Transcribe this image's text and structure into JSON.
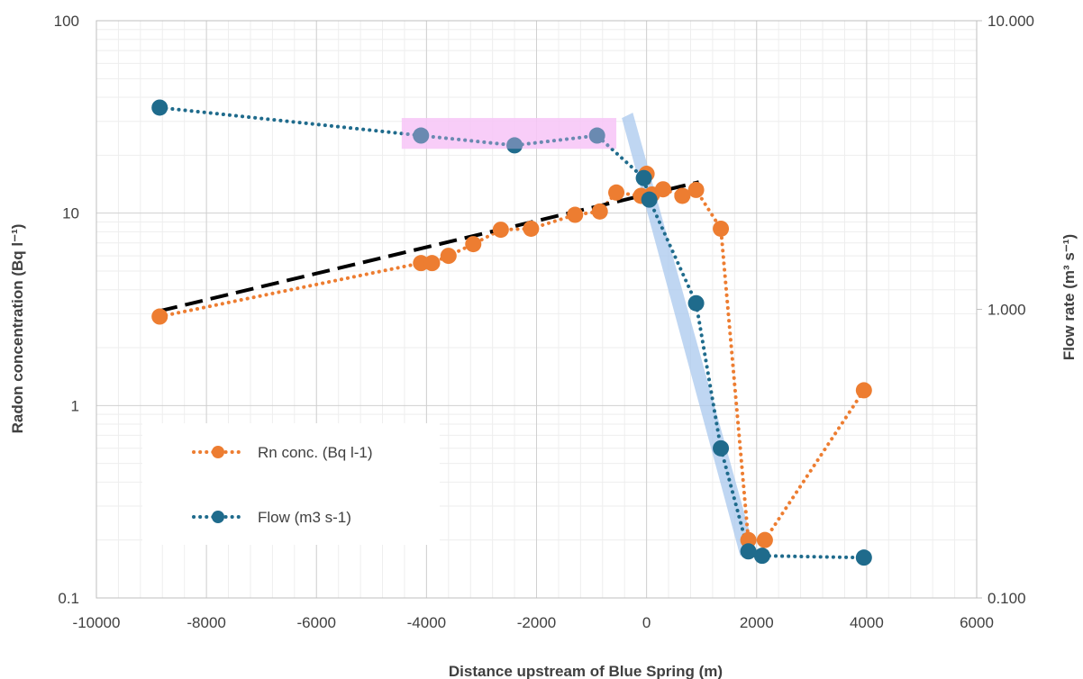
{
  "chart_data": {
    "type": "scatter",
    "title": "",
    "xlabel": "Distance upstream of Blue Spring (m)",
    "ylabel_left": "Radon concentration (Bq l⁻¹)",
    "ylabel_right": "Flow rate (m³ s⁻¹)",
    "x_range": [
      -10000,
      6000
    ],
    "x_ticks": [
      -10000,
      -8000,
      -6000,
      -4000,
      -2000,
      0,
      2000,
      4000,
      6000
    ],
    "x_tick_labels": [
      "-10000",
      "-8000",
      "-6000",
      "-4000",
      "-2000",
      "0",
      "2000",
      "4000",
      "6000"
    ],
    "y_left": {
      "scale": "log",
      "range": [
        0.1,
        100
      ],
      "ticks": [
        0.1,
        1,
        10,
        100
      ],
      "tick_labels": [
        "0.1",
        "1",
        "10",
        "100"
      ]
    },
    "y_right": {
      "scale": "log",
      "range": [
        0.1,
        10
      ],
      "ticks": [
        0.1,
        1,
        10
      ],
      "tick_labels": [
        "0.100",
        "1.000",
        "10.000"
      ]
    },
    "grid": true,
    "legend_position": "bottom-left",
    "colors": {
      "rn": "#ED7D31",
      "flow": "#1F6B8C",
      "trend": "#000000",
      "pink_band": "#F7C6F7",
      "blue_band": "#A9C8EE"
    },
    "series": [
      {
        "name": "Rn conc. (Bq l-1)",
        "axis": "left",
        "style": "dotted-marker",
        "color": "#ED7D31",
        "points": [
          [
            -8850,
            2.9
          ],
          [
            -4100,
            5.5
          ],
          [
            -3900,
            5.5
          ],
          [
            -3600,
            6.0
          ],
          [
            -3150,
            6.9
          ],
          [
            -2650,
            8.2
          ],
          [
            -2100,
            8.3
          ],
          [
            -1300,
            9.8
          ],
          [
            -850,
            10.2
          ],
          [
            -550,
            12.8
          ],
          [
            -100,
            12.3
          ],
          [
            0,
            16.0
          ],
          [
            100,
            12.5
          ],
          [
            300,
            13.3
          ],
          [
            650,
            12.3
          ],
          [
            900,
            13.2
          ],
          [
            1350,
            8.3
          ],
          [
            1850,
            0.2
          ],
          [
            2150,
            0.2
          ],
          [
            3950,
            1.2
          ]
        ]
      },
      {
        "name": "Flow (m3 s-1)",
        "axis": "right",
        "style": "dotted-marker",
        "color": "#1F6B8C",
        "points": [
          [
            -8850,
            5.0
          ],
          [
            -4100,
            4.0
          ],
          [
            -2400,
            3.7
          ],
          [
            -900,
            4.0
          ],
          [
            -50,
            2.85
          ],
          [
            50,
            2.4
          ],
          [
            900,
            1.05
          ],
          [
            1350,
            0.33
          ],
          [
            1850,
            0.145
          ],
          [
            2100,
            0.14
          ],
          [
            3950,
            0.138
          ]
        ]
      }
    ],
    "trendline": {
      "axis": "left",
      "style": "dashed",
      "color": "#000000",
      "points": [
        [
          -8850,
          3.1
        ],
        [
          950,
          14.5
        ]
      ]
    },
    "bands": [
      {
        "axis": "right",
        "color": "#F7C6F7",
        "x": [
          -4450,
          -550
        ],
        "y": [
          3.6,
          4.6
        ]
      },
      {
        "axis": "right",
        "color": "#A9C8EE",
        "polygon": [
          [
            -450,
            4.6
          ],
          [
            -250,
            4.8
          ],
          [
            1950,
            0.15
          ],
          [
            1700,
            0.14
          ]
        ]
      }
    ]
  }
}
